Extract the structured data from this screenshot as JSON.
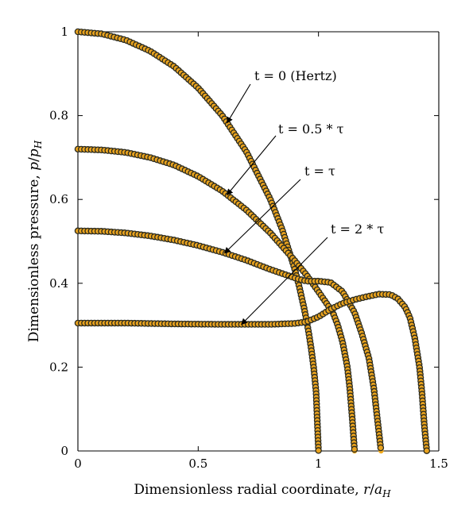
{
  "chart_data": {
    "type": "scatter",
    "title": "",
    "xlabel": "Dimensionless radial coordinate, r/a_H",
    "ylabel": "Dimensionless pressure, p/p_H",
    "xlim": [
      0,
      1.5
    ],
    "ylim": [
      0,
      1
    ],
    "xticks": [
      "0",
      "0.5",
      "1",
      "1.5"
    ],
    "yticks": [
      "0",
      "0.2",
      "0.4",
      "0.6",
      "0.8",
      "1"
    ],
    "grid": false,
    "legend": "none",
    "colors": {
      "line": "#F2AA1C",
      "marker_fill": "#E8A21E",
      "marker_edge": "#2B2B1F",
      "axis": "#000000"
    },
    "series": [
      {
        "annotation": "t = 0 (Hertz)",
        "x": [
          0,
          0.1,
          0.2,
          0.3,
          0.4,
          0.5,
          0.6,
          0.7,
          0.8,
          0.85,
          0.9,
          0.92,
          0.94,
          0.95,
          0.96,
          0.97,
          0.98,
          0.99,
          1.0
        ],
        "y": [
          1.0,
          0.995,
          0.98,
          0.954,
          0.917,
          0.866,
          0.8,
          0.714,
          0.6,
          0.527,
          0.436,
          0.392,
          0.341,
          0.312,
          0.28,
          0.243,
          0.199,
          0.141,
          0.0
        ]
      },
      {
        "annotation": "t = 0.5 * τ",
        "x": [
          0,
          0.1,
          0.2,
          0.3,
          0.4,
          0.5,
          0.6,
          0.7,
          0.8,
          0.9,
          0.95,
          1.0,
          1.03,
          1.06,
          1.08,
          1.1,
          1.12,
          1.13,
          1.14,
          1.15
        ],
        "y": [
          0.72,
          0.718,
          0.712,
          0.7,
          0.682,
          0.655,
          0.62,
          0.575,
          0.52,
          0.455,
          0.42,
          0.38,
          0.355,
          0.33,
          0.3,
          0.26,
          0.2,
          0.15,
          0.08,
          0.0
        ]
      },
      {
        "annotation": "t = τ",
        "x": [
          0,
          0.1,
          0.2,
          0.3,
          0.4,
          0.5,
          0.6,
          0.7,
          0.8,
          0.9,
          0.95,
          1.0,
          1.05,
          1.1,
          1.15,
          1.18,
          1.21,
          1.23,
          1.25,
          1.26
        ],
        "y": [
          0.525,
          0.524,
          0.52,
          0.513,
          0.503,
          0.49,
          0.474,
          0.455,
          0.433,
          0.413,
          0.405,
          0.405,
          0.402,
          0.38,
          0.33,
          0.28,
          0.22,
          0.15,
          0.05,
          0.0
        ]
      },
      {
        "annotation": "t = 2 * τ",
        "x": [
          0,
          0.2,
          0.4,
          0.6,
          0.8,
          0.9,
          0.95,
          1.0,
          1.05,
          1.1,
          1.15,
          1.2,
          1.25,
          1.3,
          1.33,
          1.36,
          1.38,
          1.4,
          1.42,
          1.43,
          1.44,
          1.45
        ],
        "y": [
          0.305,
          0.305,
          0.303,
          0.302,
          0.302,
          0.304,
          0.308,
          0.32,
          0.338,
          0.352,
          0.361,
          0.368,
          0.374,
          0.373,
          0.363,
          0.343,
          0.318,
          0.27,
          0.2,
          0.14,
          0.06,
          0.0
        ]
      }
    ]
  }
}
